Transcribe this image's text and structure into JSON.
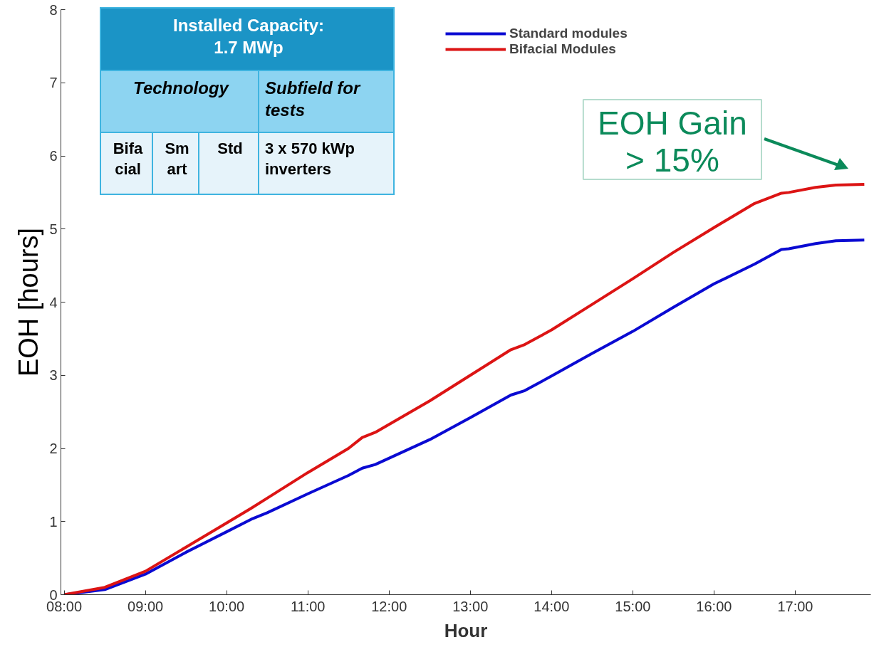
{
  "chart_data": {
    "type": "line",
    "xlabel": "Hour",
    "ylabel": "EOH [hours]",
    "x": [
      8.0,
      8.5,
      9.0,
      9.5,
      10.0,
      10.3,
      10.5,
      11.0,
      11.5,
      11.67,
      11.83,
      12.5,
      13.0,
      13.5,
      13.67,
      14.0,
      14.5,
      15.0,
      15.5,
      16.0,
      16.5,
      16.83,
      16.92,
      17.25,
      17.5,
      17.85
    ],
    "series": [
      {
        "name": "Standard modules",
        "color": "#0a0ad2",
        "values": [
          0,
          0.07,
          0.28,
          0.58,
          0.86,
          1.03,
          1.12,
          1.38,
          1.63,
          1.73,
          1.78,
          2.12,
          2.42,
          2.73,
          2.79,
          2.99,
          3.3,
          3.6,
          3.93,
          4.25,
          4.52,
          4.72,
          4.73,
          4.8,
          4.84,
          4.85
        ]
      },
      {
        "name": "Bifacial Modules",
        "color": "#dc1414",
        "values": [
          0,
          0.1,
          0.32,
          0.65,
          0.98,
          1.18,
          1.32,
          1.67,
          2.0,
          2.15,
          2.22,
          2.65,
          3.0,
          3.35,
          3.42,
          3.62,
          3.97,
          4.32,
          4.68,
          5.02,
          5.35,
          5.49,
          5.5,
          5.57,
          5.6,
          5.61
        ]
      }
    ],
    "xlim": [
      7.96,
      17.93
    ],
    "ylim": [
      0,
      8
    ],
    "xticks": [
      {
        "value": 8,
        "label": "08:00"
      },
      {
        "value": 9,
        "label": "09:00"
      },
      {
        "value": 10,
        "label": "10:00"
      },
      {
        "value": 11,
        "label": "11:00"
      },
      {
        "value": 12,
        "label": "12:00"
      },
      {
        "value": 13,
        "label": "13:00"
      },
      {
        "value": 14,
        "label": "14:00"
      },
      {
        "value": 15,
        "label": "15:00"
      },
      {
        "value": 16,
        "label": "16:00"
      },
      {
        "value": 17,
        "label": "17:00"
      }
    ],
    "yticks": [
      0,
      1,
      2,
      3,
      4,
      5,
      6,
      7,
      8
    ],
    "grid": false,
    "legend": "top",
    "line_style": "solid",
    "marker": "none",
    "annotations": [
      "Installed Capacity:\n1.7 MWp",
      "Technology",
      "Subfield  for\ntests",
      "Bifa\ncial",
      "Sm\nart",
      "Std",
      "3 x 570 kWp\ninverters",
      "EOH Gain\n> 15%"
    ]
  }
}
